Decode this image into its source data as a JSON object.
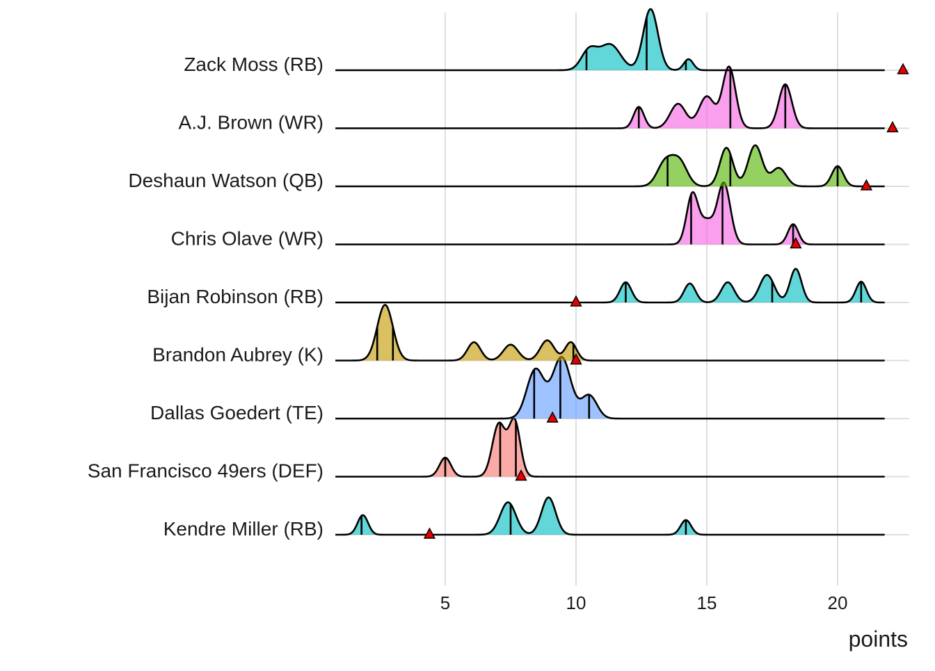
{
  "chart_data": {
    "type": "ridgeline",
    "xlabel": "points",
    "x_ticks": [
      5,
      10,
      15,
      20
    ],
    "xlim": [
      0.8,
      23.0
    ],
    "grid": "vertical major gridlines and horizontal baselines",
    "legend": "none",
    "series": [
      {
        "name": "Zack Moss (RB)",
        "position": "RB",
        "color": "#00BFC4",
        "components": [
          [
            10.5,
            0.3,
            0.32
          ],
          [
            11.3,
            0.4,
            0.42
          ],
          [
            12.85,
            0.28,
            1.0
          ],
          [
            14.3,
            0.18,
            0.18
          ]
        ],
        "quantile_lines": [
          10.4,
          12.7,
          14.2
        ],
        "marker": 22.5
      },
      {
        "name": "A.J. Brown (WR)",
        "position": "WR",
        "color": "#F564E3",
        "components": [
          [
            12.4,
            0.2,
            0.35
          ],
          [
            13.9,
            0.3,
            0.4
          ],
          [
            15.0,
            0.3,
            0.52
          ],
          [
            15.85,
            0.25,
            1.0
          ],
          [
            18.0,
            0.25,
            0.72
          ]
        ],
        "quantile_lines": [
          12.4,
          15.9,
          18.0
        ],
        "marker": 22.1
      },
      {
        "name": "Deshaun Watson (QB)",
        "position": "QB",
        "color": "#53B400",
        "components": [
          [
            13.4,
            0.3,
            0.38
          ],
          [
            13.95,
            0.3,
            0.4
          ],
          [
            15.75,
            0.25,
            0.63
          ],
          [
            16.85,
            0.27,
            0.67
          ],
          [
            17.75,
            0.28,
            0.3
          ],
          [
            20.0,
            0.22,
            0.33
          ]
        ],
        "quantile_lines": [
          13.5,
          15.9,
          20.0
        ],
        "marker": 21.1
      },
      {
        "name": "Chris Olave (WR)",
        "position": "WR",
        "color": "#F564E3",
        "components": [
          [
            14.45,
            0.22,
            0.82
          ],
          [
            15.0,
            0.25,
            0.36
          ],
          [
            15.65,
            0.25,
            1.0
          ],
          [
            18.3,
            0.2,
            0.33
          ]
        ],
        "quantile_lines": [
          14.4,
          15.6,
          18.3
        ],
        "marker": 18.4
      },
      {
        "name": "Bijan Robinson (RB)",
        "position": "RB",
        "color": "#00BFC4",
        "components": [
          [
            11.9,
            0.22,
            0.33
          ],
          [
            14.35,
            0.22,
            0.31
          ],
          [
            15.8,
            0.25,
            0.33
          ],
          [
            17.3,
            0.28,
            0.45
          ],
          [
            18.4,
            0.22,
            0.55
          ],
          [
            20.9,
            0.2,
            0.34
          ]
        ],
        "quantile_lines": [
          11.9,
          17.5,
          20.9
        ],
        "marker": 10.0
      },
      {
        "name": "Brandon Aubrey (K)",
        "position": "K",
        "color": "#C49A00",
        "components": [
          [
            2.7,
            0.3,
            0.91
          ],
          [
            6.1,
            0.25,
            0.3
          ],
          [
            7.5,
            0.28,
            0.26
          ],
          [
            8.9,
            0.27,
            0.33
          ],
          [
            9.8,
            0.22,
            0.3
          ]
        ],
        "quantile_lines": [
          2.4,
          3.0,
          9.9
        ],
        "marker": 10.0
      },
      {
        "name": "Dallas Goedert (TE)",
        "position": "TE",
        "color": "#619CFF",
        "components": [
          [
            8.45,
            0.33,
            0.8
          ],
          [
            9.45,
            0.35,
            1.0
          ],
          [
            10.5,
            0.3,
            0.38
          ]
        ],
        "quantile_lines": [
          8.4,
          9.4,
          10.5
        ],
        "marker": 9.1
      },
      {
        "name": "San Francisco 49ers (DEF)",
        "position": "DEF",
        "color": "#F8766D",
        "components": [
          [
            5.0,
            0.22,
            0.31
          ],
          [
            7.05,
            0.25,
            0.86
          ],
          [
            7.65,
            0.22,
            0.9
          ]
        ],
        "quantile_lines": [
          5.0,
          7.1,
          7.7
        ],
        "marker": 7.9
      },
      {
        "name": "Kendre Miller (RB)",
        "position": "RB",
        "color": "#00BFC4",
        "components": [
          [
            1.85,
            0.2,
            0.32
          ],
          [
            7.4,
            0.3,
            0.53
          ],
          [
            8.95,
            0.27,
            0.61
          ],
          [
            14.2,
            0.2,
            0.24
          ]
        ],
        "quantile_lines": [
          1.8,
          7.5,
          14.2
        ],
        "marker": 4.4
      }
    ]
  }
}
